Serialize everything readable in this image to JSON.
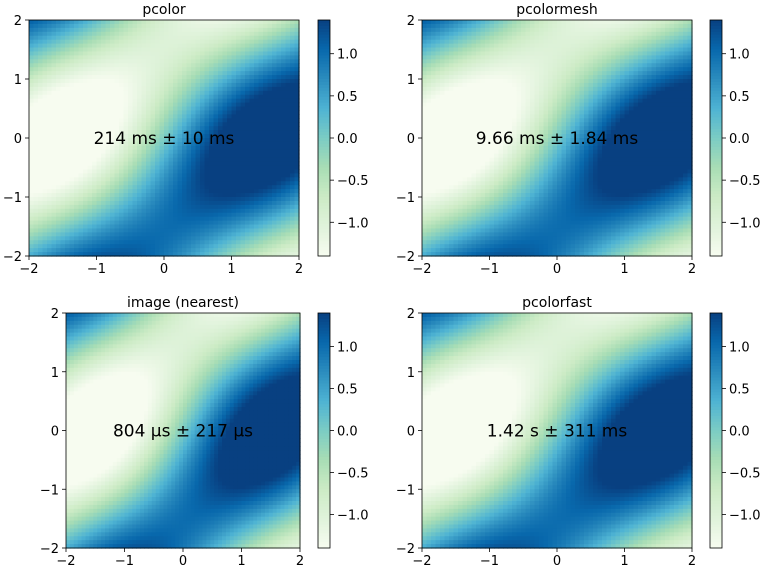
{
  "colormap": {
    "name": "GnBu",
    "stops": [
      "#f7fcf0",
      "#e0f3db",
      "#ccebc5",
      "#a8ddb5",
      "#7bccc4",
      "#4eb3d3",
      "#2b8cbe",
      "#0868ac",
      "#084081"
    ]
  },
  "chart_data": [
    {
      "type": "heatmap",
      "title": "pcolor",
      "annotation": "214 ms ± 10 ms",
      "xlim": [
        -2,
        2
      ],
      "ylim": [
        -2,
        2
      ],
      "xticks": [
        "−2",
        "−1",
        "0",
        "1",
        "2"
      ],
      "yticks": [
        "−2",
        "−1",
        "0",
        "1",
        "2"
      ],
      "function": "sin(x) * cos(y) + sin(x - y)",
      "vrange": [
        -1.4,
        1.4
      ],
      "colorbar_ticks": [
        "1.0",
        "0.5",
        "0.0",
        "−0.5",
        "−1.0"
      ]
    },
    {
      "type": "heatmap",
      "title": "pcolormesh",
      "annotation": "9.66 ms ± 1.84 ms",
      "xlim": [
        -2,
        2
      ],
      "ylim": [
        -2,
        2
      ],
      "xticks": [
        "−2",
        "−1",
        "0",
        "1",
        "2"
      ],
      "yticks": [
        "−2",
        "−1",
        "0",
        "1",
        "2"
      ],
      "function": "sin(x) * cos(y) + sin(x - y)",
      "vrange": [
        -1.4,
        1.4
      ],
      "colorbar_ticks": [
        "1.0",
        "0.5",
        "0.0",
        "−0.5",
        "−1.0"
      ]
    },
    {
      "type": "heatmap",
      "title": "image (nearest)",
      "annotation": "804 μs ± 217 μs",
      "xlim": [
        -2,
        2
      ],
      "ylim": [
        -2,
        2
      ],
      "xticks": [
        "−2",
        "−1",
        "0",
        "1",
        "2"
      ],
      "yticks": [
        "−2",
        "−1",
        "0",
        "1",
        "2"
      ],
      "function": "sin(x) * cos(y) + sin(x - y)",
      "vrange": [
        -1.4,
        1.4
      ],
      "colorbar_ticks": [
        "1.0",
        "0.5",
        "0.0",
        "−0.5",
        "−1.0"
      ]
    },
    {
      "type": "heatmap",
      "title": "pcolorfast",
      "annotation": "1.42 s ± 311 ms",
      "xlim": [
        -2,
        2
      ],
      "ylim": [
        -2,
        2
      ],
      "xticks": [
        "−2",
        "−1",
        "0",
        "1",
        "2"
      ],
      "yticks": [
        "−2",
        "−1",
        "0",
        "1",
        "2"
      ],
      "function": "sin(x) * cos(y) + sin(x - y)",
      "vrange": [
        -1.4,
        1.4
      ],
      "colorbar_ticks": [
        "1.0",
        "0.5",
        "0.0",
        "−0.5",
        "−1.0"
      ]
    }
  ]
}
